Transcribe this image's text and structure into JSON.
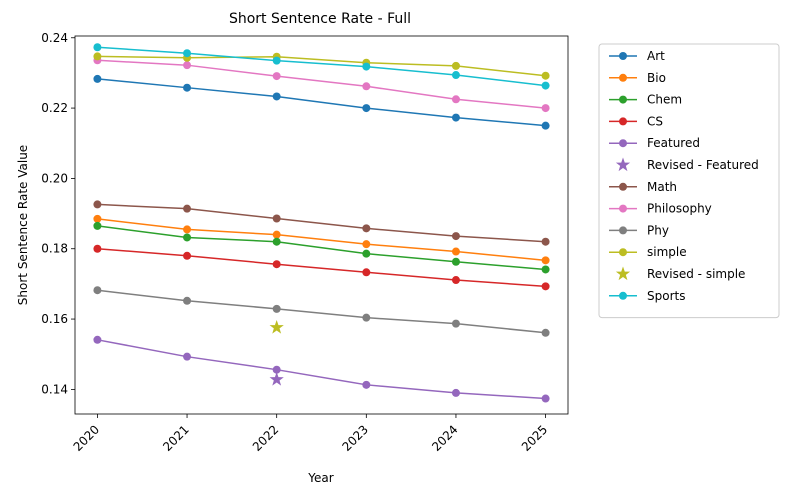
{
  "chart_data": {
    "type": "line",
    "title": "Short Sentence Rate - Full",
    "xlabel": "Year",
    "ylabel": "Short Sentence Rate Value",
    "x": [
      2020,
      2021,
      2022,
      2023,
      2024,
      2025
    ],
    "ylim": [
      0.133,
      0.2405
    ],
    "yticks": [
      "0.14",
      "0.16",
      "0.18",
      "0.20",
      "0.22",
      "0.24"
    ],
    "ytick_values": [
      0.14,
      0.16,
      0.18,
      0.2,
      0.22,
      0.24
    ],
    "grid": false,
    "legend_position": "outside-right",
    "series": [
      {
        "name": "Art",
        "color": "#1f77b4",
        "values": [
          0.2283,
          0.2258,
          0.2233,
          0.22,
          0.2173,
          0.215
        ]
      },
      {
        "name": "Bio",
        "color": "#ff7f0e",
        "values": [
          0.1885,
          0.1855,
          0.184,
          0.1813,
          0.1792,
          0.1767
        ]
      },
      {
        "name": "Chem",
        "color": "#2ca02c",
        "values": [
          0.1865,
          0.1832,
          0.182,
          0.1786,
          0.1763,
          0.1741
        ]
      },
      {
        "name": "CS",
        "color": "#d62728",
        "values": [
          0.18,
          0.178,
          0.1756,
          0.1733,
          0.1711,
          0.1693
        ]
      },
      {
        "name": "Featured",
        "color": "#9467bd",
        "values": [
          0.1541,
          0.1493,
          0.1456,
          0.1413,
          0.139,
          0.1374
        ]
      },
      {
        "name": "Revised - Featured",
        "color": "#9467bd",
        "marker": "star",
        "points": [
          {
            "x": 2022,
            "y": 0.1428
          }
        ]
      },
      {
        "name": "Math",
        "color": "#8c564b",
        "values": [
          0.1926,
          0.1914,
          0.1886,
          0.1858,
          0.1836,
          0.182
        ]
      },
      {
        "name": "Philosophy",
        "color": "#e377c2",
        "values": [
          0.2336,
          0.2322,
          0.2291,
          0.2262,
          0.2225,
          0.22
        ]
      },
      {
        "name": "Phy",
        "color": "#7f7f7f",
        "values": [
          0.1682,
          0.1652,
          0.1629,
          0.1604,
          0.1587,
          0.1561
        ]
      },
      {
        "name": "simple",
        "color": "#bcbd22",
        "values": [
          0.2347,
          0.2343,
          0.2346,
          0.2329,
          0.232,
          0.2292
        ]
      },
      {
        "name": "Revised - simple",
        "color": "#bcbd22",
        "marker": "star",
        "points": [
          {
            "x": 2022,
            "y": 0.1576
          }
        ]
      },
      {
        "name": "Sports",
        "color": "#17becf",
        "values": [
          0.2373,
          0.2356,
          0.2335,
          0.2318,
          0.2294,
          0.2264
        ]
      }
    ]
  }
}
